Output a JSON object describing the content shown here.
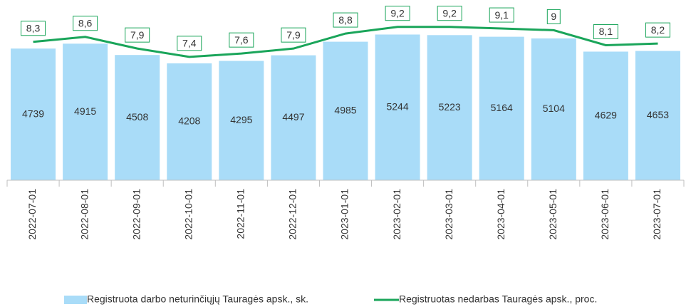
{
  "chart_data": {
    "type": "bar_line",
    "categories": [
      "2022-07-01",
      "2022-08-01",
      "2022-09-01",
      "2022-10-01",
      "2022-11-01",
      "2022-12-01",
      "2023-01-01",
      "2023-02-01",
      "2023-03-01",
      "2023-04-01",
      "2023-05-01",
      "2023-06-01",
      "2023-07-01"
    ],
    "series": [
      {
        "name": "Registruota darbo neturinčiųjų Tauragės apsk., sk.",
        "type": "bar",
        "color": "#a9dcf8",
        "values": [
          4739,
          4915,
          4508,
          4208,
          4295,
          4497,
          4985,
          5244,
          5223,
          5164,
          5104,
          4629,
          4653
        ]
      },
      {
        "name": "Registruotas nedarbas Tauragės apsk., proc.",
        "type": "line",
        "color": "#1aa55a",
        "axis": "y2",
        "values": [
          8.3,
          8.6,
          7.9,
          7.4,
          7.6,
          7.9,
          8.8,
          9.2,
          9.2,
          9.1,
          9,
          8.1,
          8.2
        ],
        "value_labels": [
          "8,3",
          "8,6",
          "7,9",
          "7,4",
          "7,6",
          "7,9",
          "8,8",
          "9,2",
          "9,2",
          "9,1",
          "9",
          "8,1",
          "8,2"
        ]
      }
    ],
    "ylim": [
      0,
      6000
    ],
    "y2lim": [
      0,
      10
    ],
    "legend": "bottom"
  }
}
